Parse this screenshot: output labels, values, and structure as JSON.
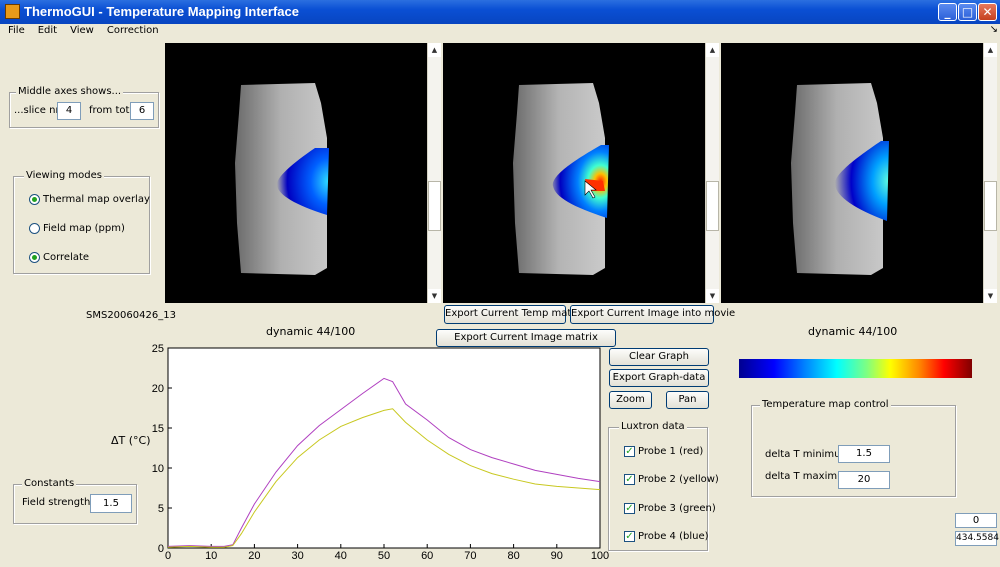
{
  "window": {
    "title": "ThermoGUI - Temperature Mapping Interface",
    "minimize": "_",
    "maximize": "□",
    "close": "✕"
  },
  "menu": [
    "File",
    "Edit",
    "View",
    "Correction"
  ],
  "menu_corner": "↘",
  "middle_axes": {
    "title": "Middle axes shows...",
    "slice_label": "...slice nr",
    "slice_value": "4",
    "total_label": "from total",
    "total_value": "6"
  },
  "viewing_modes": {
    "title": "Viewing modes",
    "options": [
      {
        "label": "Thermal map overlay",
        "selected": true
      },
      {
        "label": "Field map (ppm)",
        "selected": false
      },
      {
        "label": "Correlate",
        "selected": true
      }
    ]
  },
  "constants": {
    "title": "Constants",
    "field_strength_label": "Field strength",
    "field_strength_value": "1.5"
  },
  "dataset_name": "SMS20060426_13",
  "left_dynamic": "dynamic 44/100",
  "right_dynamic": "dynamic 44/100",
  "buttons": {
    "export_temp": "Export Current Temp matrix",
    "export_movie": "Export Current Image into movie",
    "export_image": "Export Current Image matrix",
    "clear_graph": "Clear Graph",
    "export_graph": "Export Graph-data",
    "zoom": "Zoom",
    "pan": "Pan"
  },
  "luxtron": {
    "title": "Luxtron data",
    "probes": [
      "Probe 1 (red)",
      "Probe 2 (yellow)",
      "Probe 3 (green)",
      "Probe 4 (blue)"
    ]
  },
  "temp_control": {
    "title": "Temperature map control",
    "min_label": "delta T minimum",
    "min_value": "1.5",
    "max_label": "delta T maximum",
    "max_value": "20"
  },
  "readouts": {
    "top": "0",
    "bottom": "434.5584"
  },
  "colors": {
    "line1": "#b040c0",
    "line2": "#c8c820",
    "titlebar": "#0a4fd4"
  },
  "chart_data": {
    "type": "line",
    "title": "",
    "xlabel": "",
    "ylabel": "ΔT (°C)",
    "xlim": [
      0,
      100
    ],
    "ylim": [
      0,
      25
    ],
    "xticks": [
      0,
      10,
      20,
      30,
      40,
      50,
      60,
      70,
      80,
      90,
      100
    ],
    "yticks": [
      0,
      5,
      10,
      15,
      20,
      25
    ],
    "series": [
      {
        "color": "#b040c0",
        "x": [
          0,
          5,
          10,
          13,
          15,
          17,
          20,
          25,
          30,
          35,
          40,
          45,
          50,
          52,
          55,
          60,
          65,
          70,
          75,
          80,
          85,
          90,
          95,
          100
        ],
        "y": [
          0.2,
          0.3,
          0.2,
          0.2,
          0.4,
          2.5,
          5.5,
          9.5,
          12.8,
          15.3,
          17.3,
          19.3,
          21.2,
          20.8,
          18.0,
          16.0,
          13.8,
          12.3,
          11.3,
          10.5,
          9.7,
          9.2,
          8.7,
          8.3
        ]
      },
      {
        "color": "#c8c820",
        "x": [
          0,
          5,
          10,
          13,
          15,
          17,
          20,
          25,
          30,
          35,
          40,
          45,
          50,
          52,
          55,
          60,
          65,
          70,
          75,
          80,
          85,
          90,
          95,
          100
        ],
        "y": [
          0.1,
          0.2,
          0.1,
          0.1,
          0.3,
          1.8,
          4.5,
          8.3,
          11.3,
          13.5,
          15.2,
          16.3,
          17.2,
          17.4,
          15.7,
          13.5,
          11.7,
          10.3,
          9.3,
          8.6,
          8.0,
          7.7,
          7.5,
          7.3
        ]
      }
    ]
  }
}
